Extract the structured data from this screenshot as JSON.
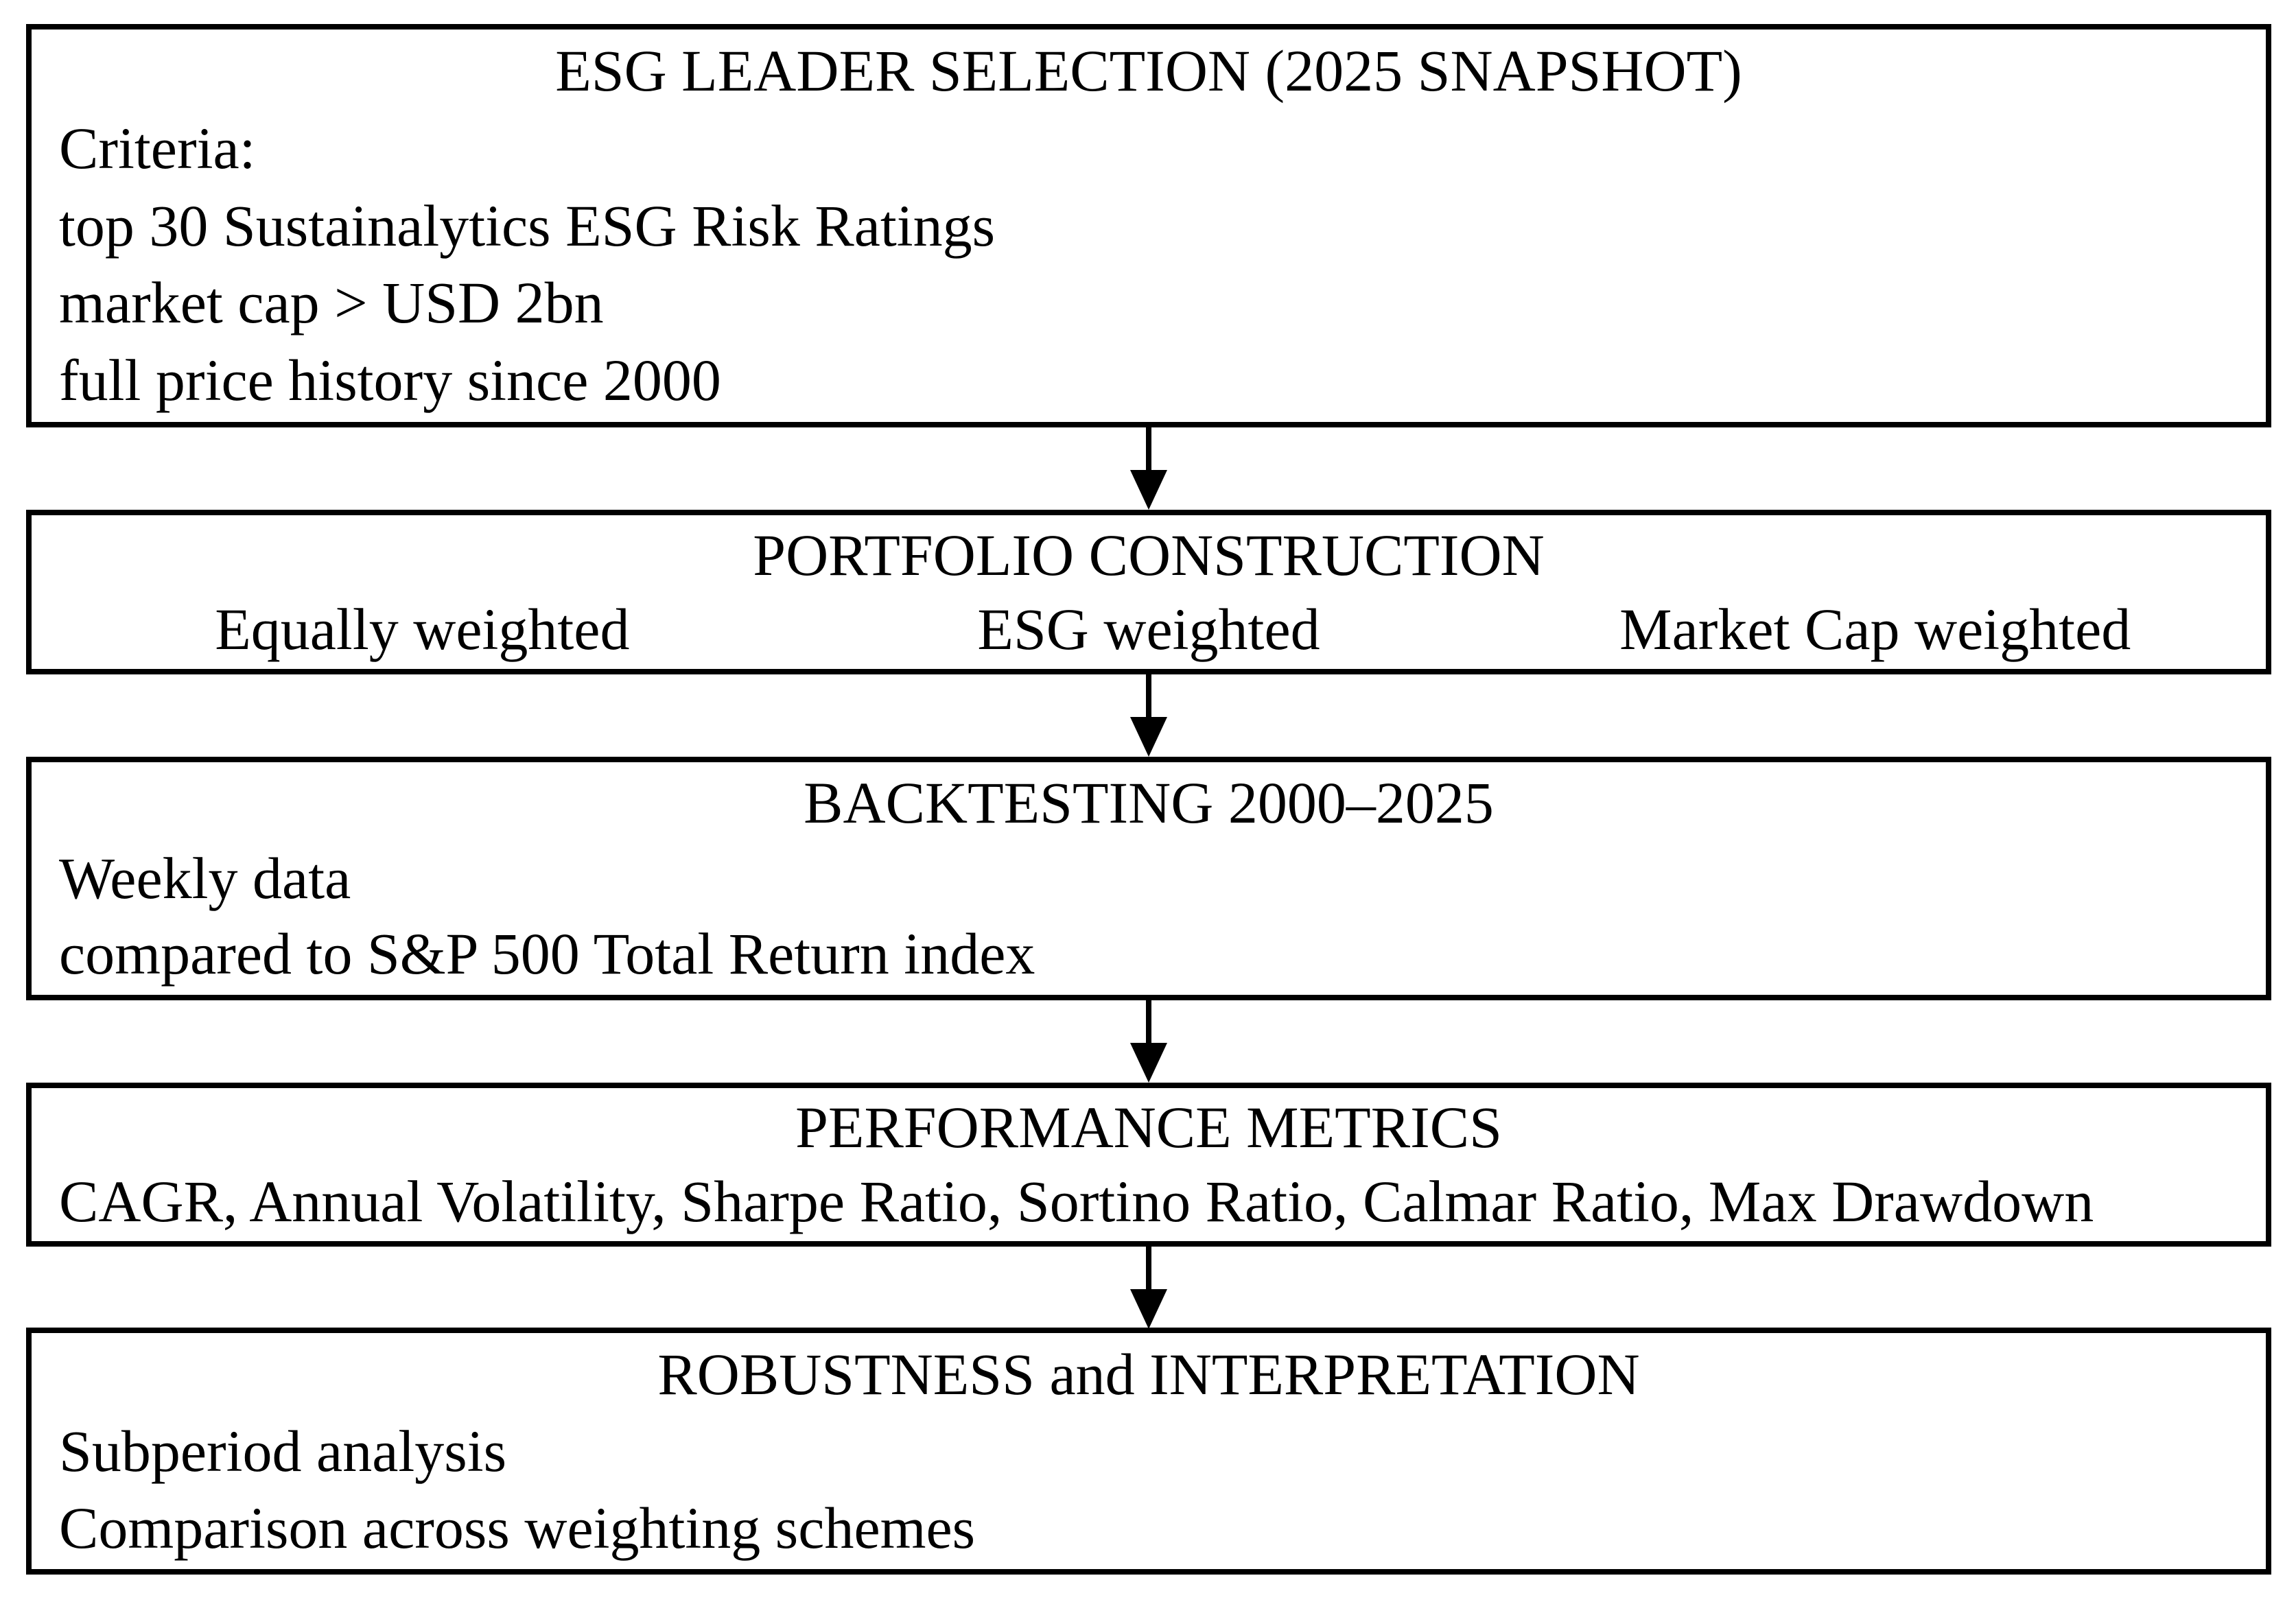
{
  "diagram": {
    "colors": {
      "background": "#ffffff",
      "border": "#000000",
      "text": "#000000"
    },
    "boxes": [
      {
        "title": "ESG LEADER SELECTION (2025 SNAPSHOT)",
        "lines": [
          "Criteria:",
          "top 30 Sustainalytics ESG Risk Ratings",
          "market cap > USD 2bn",
          "full price history since 2000"
        ]
      },
      {
        "title": "PORTFOLIO CONSTRUCTION",
        "columns": [
          "Equally weighted",
          "ESG weighted",
          "Market Cap weighted"
        ]
      },
      {
        "title": "BACKTESTING 2000–2025",
        "lines": [
          "Weekly data",
          "compared to S&P 500 Total Return index"
        ]
      },
      {
        "title": "PERFORMANCE METRICS",
        "lines": [
          "CAGR, Annual Volatility, Sharpe Ratio, Sortino Ratio, Calmar Ratio, Max Drawdown"
        ]
      },
      {
        "title": "ROBUSTNESS and INTERPRETATION",
        "lines": [
          "Subperiod analysis",
          "Comparison across weighting schemes"
        ]
      }
    ]
  }
}
